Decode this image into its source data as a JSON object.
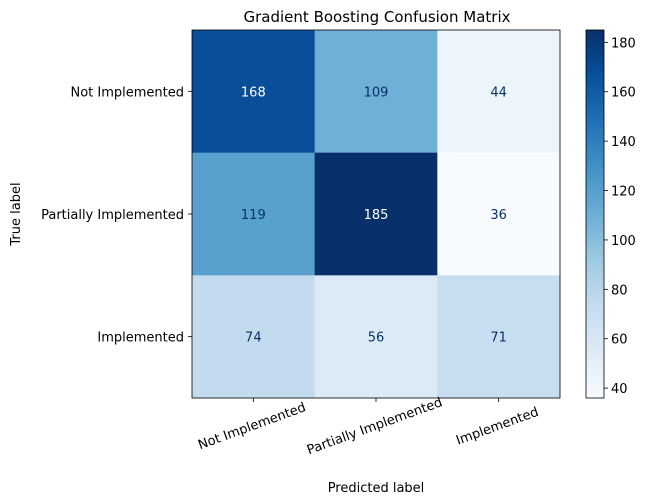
{
  "chart_data": {
    "type": "heatmap",
    "title": "Gradient Boosting Confusion Matrix",
    "xlabel": "Predicted label",
    "ylabel": "True label",
    "x_categories": [
      "Not Implemented",
      "Partially Implemented",
      "Implemented"
    ],
    "y_categories": [
      "Not Implemented",
      "Partially Implemented",
      "Implemented"
    ],
    "matrix": [
      [
        168,
        109,
        44
      ],
      [
        119,
        185,
        36
      ],
      [
        74,
        56,
        71
      ]
    ],
    "colormap": "Blues",
    "color_range": [
      36,
      185
    ],
    "colorbar_ticks": [
      40,
      60,
      80,
      100,
      120,
      140,
      160,
      180
    ],
    "grid": false,
    "x_tick_rotation_deg": 20
  }
}
